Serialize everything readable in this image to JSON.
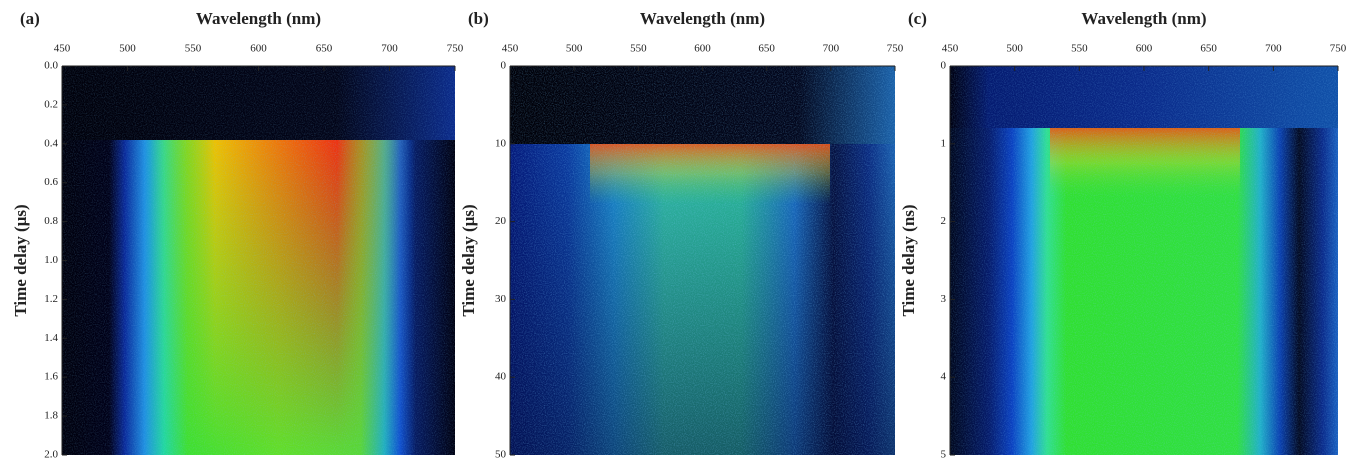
{
  "chart_data": [
    {
      "type": "heatmap",
      "panel_label": "(a)",
      "xlabel": "Wavelength (nm)",
      "ylabel": "Time delay (μs)",
      "xlim": [
        450,
        750
      ],
      "xticks": [
        450,
        500,
        550,
        600,
        650,
        700,
        750
      ],
      "ylim": [
        0,
        2
      ],
      "y_inverted": true,
      "yticks": [
        {
          "value": 0,
          "label": "0.0"
        },
        0.2,
        0.4,
        0.6,
        0.8,
        {
          "value": 1,
          "label": "1.0"
        },
        1.2,
        1.4,
        1.6,
        1.8,
        {
          "value": 2,
          "label": "2.0"
        }
      ]
    },
    {
      "type": "heatmap",
      "panel_label": "(b)",
      "xlabel": "Wavelength (nm)",
      "ylabel": "Time delay (μs)",
      "xlim": [
        450,
        750
      ],
      "xticks": [
        450,
        500,
        550,
        600,
        650,
        700,
        750
      ],
      "ylim": [
        0,
        50
      ],
      "y_inverted": true,
      "yticks": [
        0,
        10,
        20,
        30,
        40,
        50
      ]
    },
    {
      "type": "heatmap",
      "panel_label": "(c)",
      "xlabel": "Wavelength (nm)",
      "ylabel": "Time delay (ns)",
      "xlim": [
        450,
        750
      ],
      "xticks": [
        450,
        500,
        550,
        600,
        650,
        700,
        750
      ],
      "ylim": [
        0,
        5
      ],
      "y_inverted": true,
      "yticks": [
        0,
        1,
        2,
        3,
        4,
        5
      ]
    }
  ]
}
